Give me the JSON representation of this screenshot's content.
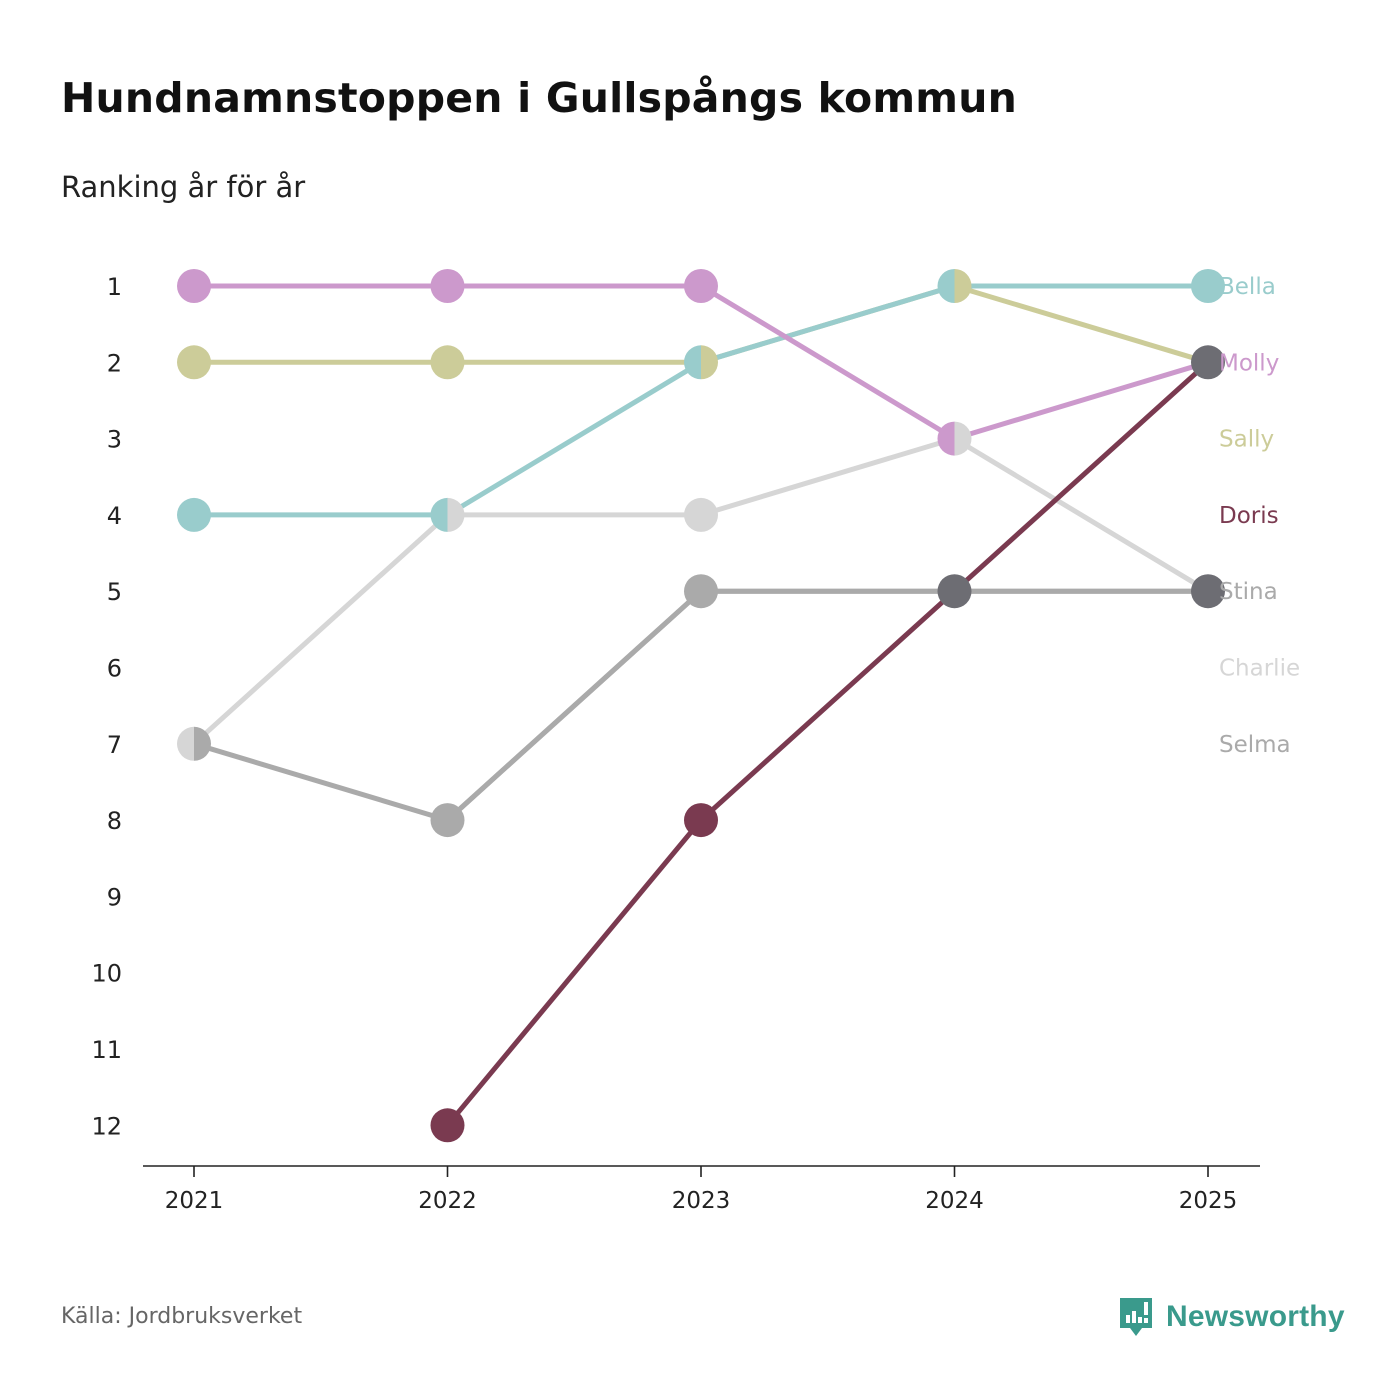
{
  "title": "Hundnamnstoppen i Gullspångs kommun",
  "subtitle": "Ranking år för år",
  "source": "Källa: Jordbruksverket",
  "brand": {
    "name": "Newsworthy",
    "icon": "newsworthy-logo-icon",
    "color": "#3a9a8c"
  },
  "chart_data": {
    "type": "line",
    "title": "Hundnamnstoppen i Gullspångs kommun",
    "subtitle": "Ranking år för år",
    "xlabel": "",
    "ylabel": "",
    "categories": [
      "2021",
      "2022",
      "2023",
      "2024",
      "2025"
    ],
    "y_ticks": [
      "1",
      "2",
      "3",
      "4",
      "5",
      "6",
      "7",
      "8",
      "9",
      "10",
      "11",
      "12"
    ],
    "ylim": [
      1,
      12
    ],
    "y_inverted": true,
    "grid": false,
    "legend": "right (end labels)",
    "series": [
      {
        "name": "Selma",
        "color": "#aaaaaa",
        "label_rank": 7,
        "values": [
          7,
          8,
          5,
          5,
          5
        ]
      },
      {
        "name": "Charlie",
        "color": "#d6d6d6",
        "label_rank": 6,
        "values": [
          7,
          4,
          4,
          3,
          5
        ]
      },
      {
        "name": "Sally",
        "color": "#cccc99",
        "label_rank": 3,
        "values": [
          2,
          2,
          2,
          1,
          2
        ]
      },
      {
        "name": "Bella",
        "color": "#99cccc",
        "label_rank": 1,
        "values": [
          4,
          4,
          2,
          1,
          1
        ]
      },
      {
        "name": "Molly",
        "color": "#cc99cc",
        "label_rank": 2,
        "values": [
          1,
          1,
          1,
          3,
          2
        ]
      },
      {
        "name": "Stina",
        "color": "#aaaaaa",
        "label_rank": 5,
        "values": [
          null,
          8,
          5,
          5,
          5
        ]
      },
      {
        "name": "Doris",
        "color": "#7a3a50",
        "label_rank": 4,
        "values": [
          null,
          12,
          8,
          5,
          2
        ]
      }
    ],
    "overlap_color": "#6d6d73"
  }
}
